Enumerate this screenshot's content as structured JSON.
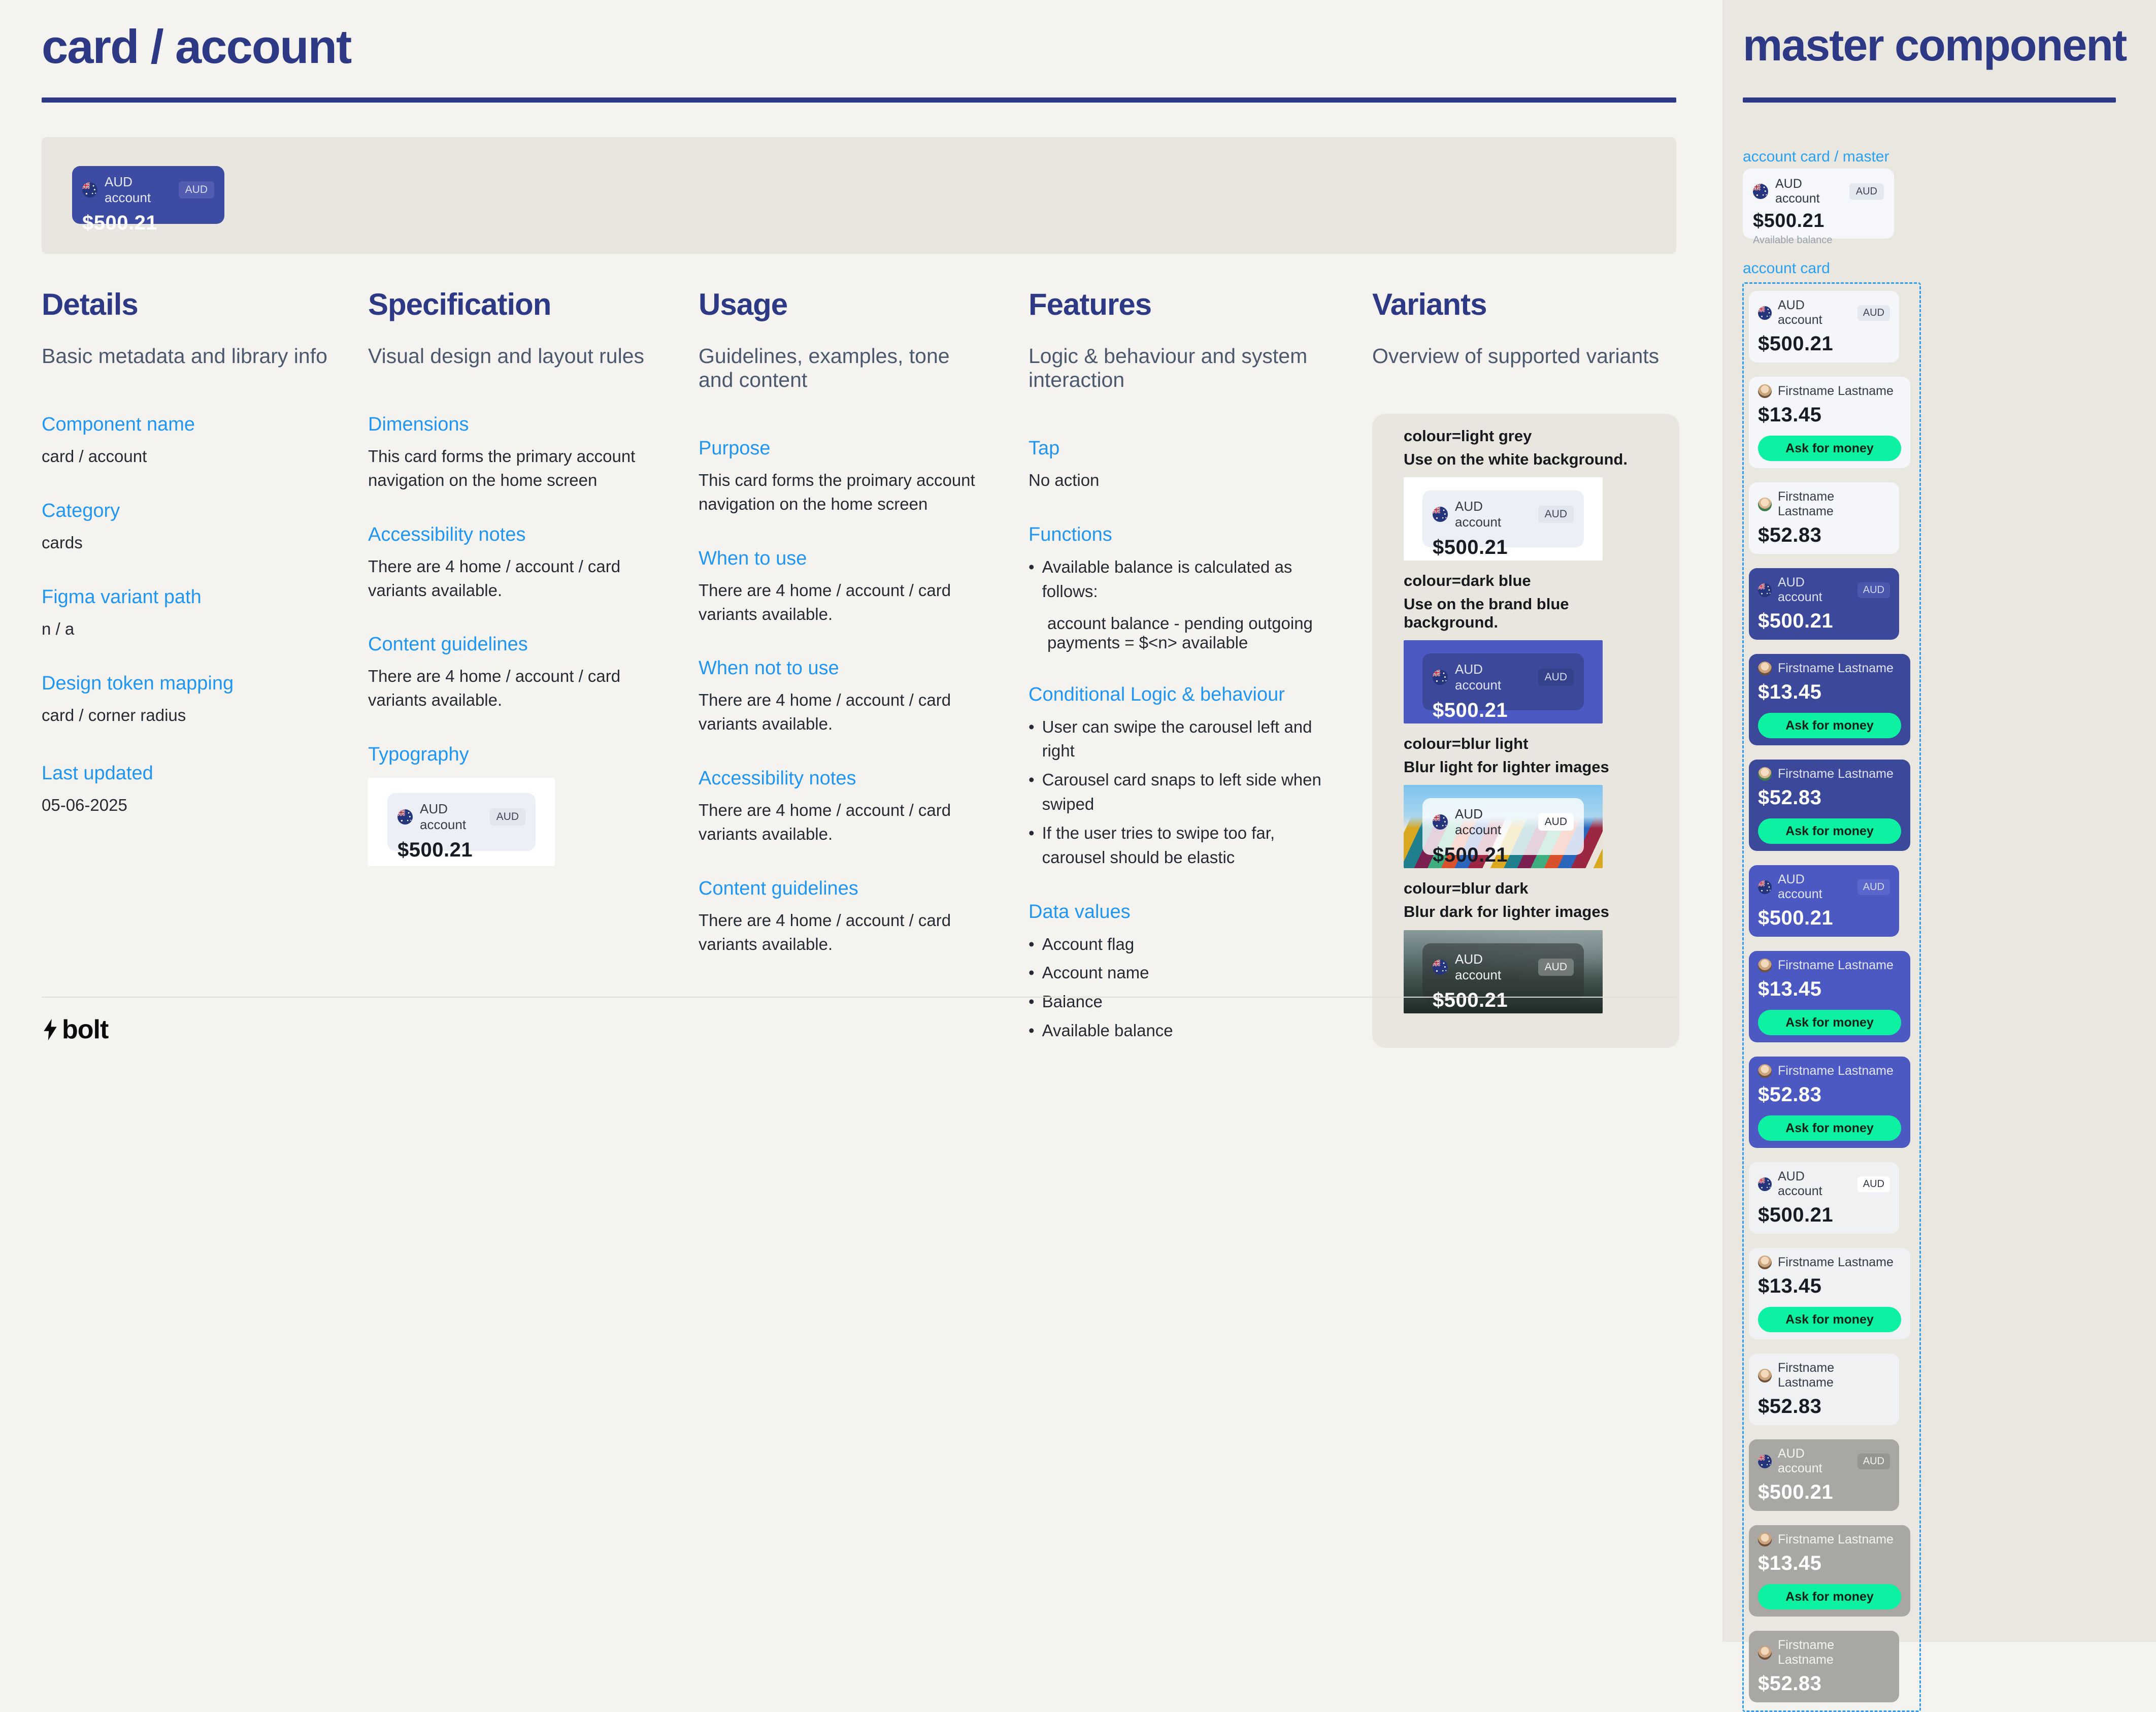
{
  "page": {
    "title": "card / account"
  },
  "colors": {
    "accent_navy": "#2D3985",
    "link_blue": "#2096F2",
    "brand_blue": "#4C59C2",
    "dark_blue_card": "#3C4899",
    "mint_button": "#0DF1A3",
    "page_bg": "#F5F3EF",
    "sidebar_bg": "#EAE7E1",
    "panel_bg": "#E9E6E0"
  },
  "icons": {
    "flag": "australia-flag-icon",
    "logo": "lightning-bolt-icon",
    "avatar": "avatar"
  },
  "hero": {
    "name": "AUD account",
    "badge": "AUD",
    "balance": "$500.21"
  },
  "details": {
    "title": "Details",
    "subtitle": "Basic metadata and library info",
    "sections": [
      {
        "label": "Component name",
        "value": "card / account"
      },
      {
        "label": "Category",
        "value": "cards"
      },
      {
        "label": "Figma variant path",
        "value": "n / a"
      },
      {
        "label": "Design token mapping",
        "value": "card / corner radius"
      },
      {
        "label": "Last updated",
        "value": "05-06-2025"
      }
    ]
  },
  "specification": {
    "title": "Specification",
    "subtitle": "Visual design and layout rules",
    "sections": [
      {
        "label": "Dimensions",
        "value": "This card forms the primary account navigation on the home screen"
      },
      {
        "label": "Accessibility notes",
        "value": "There are 4 home / account / card variants available."
      },
      {
        "label": "Content guidelines",
        "value": "There are 4 home / account / card variants available."
      }
    ],
    "typography_label": "Typography",
    "demo": {
      "name": "AUD account",
      "badge": "AUD",
      "balance": "$500.21"
    }
  },
  "usage": {
    "title": "Usage",
    "subtitle": "Guidelines, examples, tone and content",
    "sections": [
      {
        "label": "Purpose",
        "value": "This card forms the proimary account navigation on the home screen"
      },
      {
        "label": "When to use",
        "value": "There are 4 home / account / card variants available."
      },
      {
        "label": "When not to use",
        "value": "There are 4 home / account / card variants available."
      },
      {
        "label": "Accessibility notes",
        "value": "There are 4 home / account / card variants available."
      },
      {
        "label": "Content guidelines",
        "value": "There are 4 home / account / card variants available."
      }
    ]
  },
  "features": {
    "title": "Features",
    "subtitle": "Logic & behaviour and system interaction",
    "tap": {
      "label": "Tap",
      "value": "No action"
    },
    "functions": {
      "label": "Functions",
      "bullets": [
        "Available balance is calculated as follows:"
      ],
      "formula": "account balance - pending outgoing payments = $<n> available"
    },
    "conditional": {
      "label": "Conditional Logic & behaviour",
      "bullets": [
        "User can swipe the carousel left and right",
        "Carousel card snaps to left side when swiped",
        "If the user tries to swipe too far, carousel should be elastic"
      ]
    },
    "data_values": {
      "label": "Data values",
      "bullets": [
        "Account flag",
        "Account name",
        "Balance",
        "Available balance"
      ]
    }
  },
  "variants": {
    "title": "Variants",
    "subtitle": "Overview of supported variants",
    "items": [
      {
        "prop": "colour=light grey",
        "desc": "Use on the white background.",
        "card": {
          "name": "AUD account",
          "badge": "AUD",
          "balance": "$500.21"
        }
      },
      {
        "prop": "colour=dark blue",
        "desc": "Use on the brand blue background.",
        "card": {
          "name": "AUD account",
          "badge": "AUD",
          "balance": "$500.21"
        }
      },
      {
        "prop": "colour=blur light",
        "desc": "Blur light for lighter images",
        "card": {
          "name": "AUD account",
          "badge": "AUD",
          "balance": "$500.21"
        }
      },
      {
        "prop": "colour=blur dark",
        "desc": "Blur dark for lighter images",
        "card": {
          "name": "AUD account",
          "badge": "AUD",
          "balance": "$500.21"
        }
      }
    ]
  },
  "sidebar": {
    "title": "master component",
    "master_label": "account card / master",
    "master_card": {
      "name": "AUD account",
      "badge": "AUD",
      "balance": "$500.21",
      "subtitle": "Available balance"
    },
    "list_label": "account card",
    "cards": [
      {
        "kind": "account",
        "theme": "light",
        "name": "AUD account",
        "badge": "AUD",
        "balance": "$500.21"
      },
      {
        "kind": "person",
        "theme": "light",
        "avatar": "man",
        "name": "Firstname Lastname",
        "balance": "$13.45",
        "button": "Ask for money"
      },
      {
        "kind": "person",
        "theme": "light",
        "avatar": "woman",
        "name": "Firstname Lastname",
        "balance": "$52.83"
      },
      {
        "kind": "account",
        "theme": "navy",
        "name": "AUD account",
        "badge": "AUD",
        "balance": "$500.21"
      },
      {
        "kind": "person",
        "theme": "navy",
        "avatar": "man",
        "name": "Firstname Lastname",
        "balance": "$13.45",
        "button": "Ask for money"
      },
      {
        "kind": "person",
        "theme": "navy",
        "avatar": "woman",
        "name": "Firstname Lastname",
        "balance": "$52.83",
        "button": "Ask for money"
      },
      {
        "kind": "account",
        "theme": "indigo",
        "name": "AUD account",
        "badge": "AUD",
        "balance": "$500.21"
      },
      {
        "kind": "person",
        "theme": "indigo",
        "avatar": "man",
        "name": "Firstname Lastname",
        "balance": "$13.45",
        "button": "Ask for money"
      },
      {
        "kind": "person",
        "theme": "indigo",
        "avatar": "man",
        "name": "Firstname Lastname",
        "balance": "$52.83",
        "button": "Ask for money"
      },
      {
        "kind": "account",
        "theme": "blur-light",
        "name": "AUD account",
        "badge": "AUD",
        "balance": "$500.21"
      },
      {
        "kind": "person",
        "theme": "blur-light",
        "avatar": "man",
        "name": "Firstname Lastname",
        "balance": "$13.45",
        "button": "Ask for money"
      },
      {
        "kind": "person",
        "theme": "blur-light",
        "avatar": "man",
        "name": "Firstname Lastname",
        "balance": "$52.83"
      },
      {
        "kind": "account",
        "theme": "blur-dark",
        "name": "AUD account",
        "badge": "AUD",
        "balance": "$500.21"
      },
      {
        "kind": "person",
        "theme": "blur-dark",
        "avatar": "man",
        "name": "Firstname Lastname",
        "balance": "$13.45",
        "button": "Ask for money"
      },
      {
        "kind": "person",
        "theme": "blur-dark",
        "avatar": "man",
        "name": "Firstname Lastname",
        "balance": "$52.83"
      }
    ]
  },
  "footer": {
    "logo_text": "bolt"
  }
}
